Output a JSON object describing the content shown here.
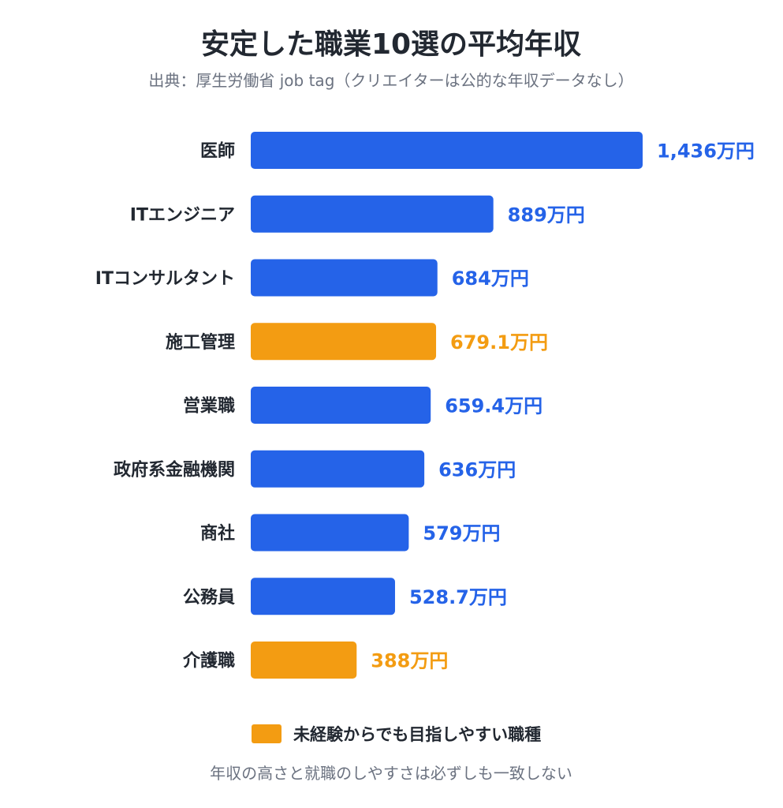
{
  "chart_data": {
    "type": "bar",
    "orientation": "horizontal",
    "title": "安定した職業10選の平均年収",
    "subtitle": "出典：厚生労働省 job tag（クリエイターは公的な年収データなし）",
    "categories": [
      "医師",
      "ITエンジニア",
      "ITコンサルタント",
      "施工管理",
      "営業職",
      "政府系金融機関",
      "商社",
      "公務員",
      "介護職"
    ],
    "values": [
      1436,
      889,
      684,
      679.1,
      659.4,
      636,
      579,
      528.7,
      388
    ],
    "value_labels": [
      "1,436万円",
      "889万円",
      "684万円",
      "679.1万円",
      "659.4万円",
      "636万円",
      "579万円",
      "528.7万円",
      "388万円"
    ],
    "highlight": [
      false,
      false,
      false,
      true,
      false,
      false,
      false,
      false,
      true
    ],
    "unit": "万円",
    "xlim": [
      0,
      1436
    ],
    "grid": false,
    "legend": {
      "placement": "bottom-center",
      "entries": [
        {
          "label": "未経験からでも目指しやすい職種",
          "color": "#f39c12"
        }
      ]
    },
    "footnote": "年収の高さと就職のしやすさは必ずしも一致しない",
    "colors": {
      "default": "#2563e8",
      "highlight": "#f39c12"
    }
  }
}
